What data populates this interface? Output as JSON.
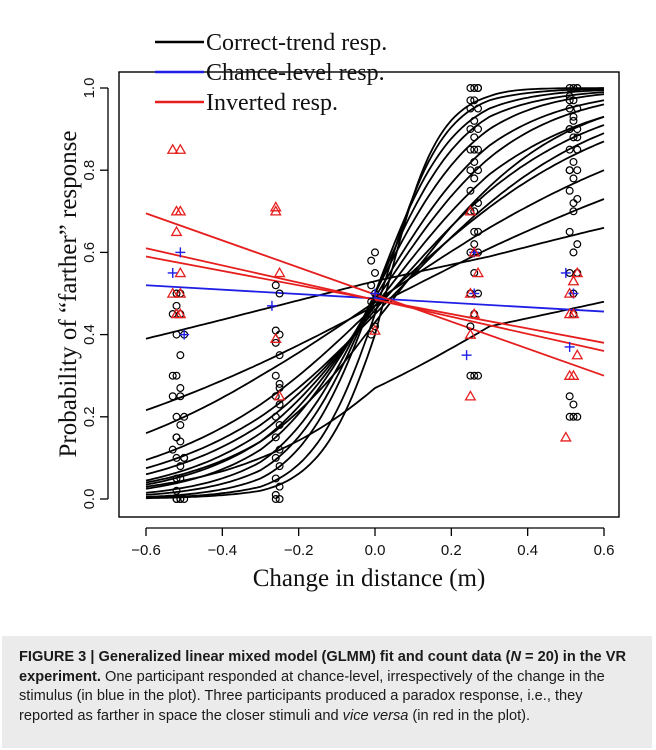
{
  "caption": {
    "label": "FIGURE 3 |",
    "title": "Generalized linear mixed model (GLMM) fit and count data (",
    "n_symbol": "N",
    "n_value": " = 20) in the VR experiment.",
    "text_1": "One participant responded at chance-level, irrespectively of the change in the stimulus (in blue in the plot). Three participants produced a paradox response, i.e., they reported as farther in space the closer stimuli and ",
    "text_italic": "vice versa",
    "text_2": " (in red in the plot)."
  },
  "colors": {
    "correct": "#000000",
    "chance": "#1f1fe6",
    "inverted": "#e61e1e"
  },
  "chart_data": {
    "type": "scatter",
    "xlabel": "Change in distance (m)",
    "ylabel": "Probability of “farther” response",
    "xlim": [
      -0.6,
      0.6
    ],
    "ylim": [
      0.0,
      1.0
    ],
    "xticks": [
      -0.6,
      -0.4,
      -0.2,
      0.0,
      0.2,
      0.4,
      0.6
    ],
    "xtick_labels": [
      "−0.6",
      "−0.4",
      "−0.2",
      "0.0",
      "0.2",
      "0.4",
      "0.6"
    ],
    "yticks": [
      0.0,
      0.2,
      0.4,
      0.6,
      0.8,
      1.0
    ],
    "ytick_labels": [
      "0.0",
      "0.2",
      "0.4",
      "0.6",
      "0.8",
      "1.0"
    ],
    "grid": false,
    "legend": {
      "placement": "top-left",
      "entries": [
        {
          "label": "Correct-trend resp.",
          "color": "#000000"
        },
        {
          "label": "Chance-level resp.",
          "color": "#1f1fe6"
        },
        {
          "label": "Inverted resp.",
          "color": "#e61e1e"
        }
      ]
    },
    "fit_curves": [
      {
        "group": "correct",
        "x": [
          -0.6,
          -0.3,
          0.0,
          0.3,
          0.6
        ],
        "y": [
          0.39,
          0.46,
          0.53,
          0.59,
          0.66
        ]
      },
      {
        "group": "correct",
        "x": [
          -0.6,
          -0.3,
          0.0,
          0.3,
          0.6
        ],
        "y": [
          0.216,
          0.33,
          0.47,
          0.61,
          0.73
        ]
      },
      {
        "group": "correct",
        "x": [
          -0.6,
          -0.3,
          0.0,
          0.3,
          0.6
        ],
        "y": [
          0.03,
          0.1,
          0.27,
          0.42,
          0.48
        ]
      },
      {
        "group": "correct",
        "x": [
          -0.6,
          -0.3,
          0.0,
          0.3,
          0.6
        ],
        "y": [
          0.16,
          0.3,
          0.48,
          0.66,
          0.8
        ]
      },
      {
        "group": "correct",
        "x": [
          -0.6,
          -0.3,
          0.0,
          0.3,
          0.6
        ],
        "y": [
          0.095,
          0.23,
          0.47,
          0.71,
          0.87
        ]
      },
      {
        "group": "correct",
        "x": [
          -0.6,
          -0.3,
          0.0,
          0.3,
          0.6
        ],
        "y": [
          0.075,
          0.2,
          0.45,
          0.72,
          0.89
        ]
      },
      {
        "group": "correct",
        "x": [
          -0.6,
          -0.3,
          0.0,
          0.3,
          0.6
        ],
        "y": [
          0.06,
          0.18,
          0.46,
          0.75,
          0.91
        ]
      },
      {
        "group": "correct",
        "x": [
          -0.6,
          -0.3,
          0.0,
          0.3,
          0.6
        ],
        "y": [
          0.045,
          0.16,
          0.47,
          0.79,
          0.93
        ]
      },
      {
        "group": "correct",
        "x": [
          -0.6,
          -0.3,
          0.0,
          0.3,
          0.6
        ],
        "y": [
          0.035,
          0.14,
          0.48,
          0.83,
          0.96
        ]
      },
      {
        "group": "correct",
        "x": [
          -0.6,
          -0.3,
          0.0,
          0.3,
          0.6
        ],
        "y": [
          0.025,
          0.12,
          0.49,
          0.86,
          0.97
        ]
      },
      {
        "group": "correct",
        "x": [
          -0.6,
          -0.3,
          0.0,
          0.3,
          0.6
        ],
        "y": [
          0.015,
          0.09,
          0.5,
          0.9,
          0.985
        ]
      },
      {
        "group": "correct",
        "x": [
          -0.6,
          -0.3,
          0.0,
          0.3,
          0.6
        ],
        "y": [
          0.01,
          0.07,
          0.5,
          0.93,
          0.99
        ]
      },
      {
        "group": "correct",
        "x": [
          -0.6,
          -0.3,
          0.0,
          0.3,
          0.6
        ],
        "y": [
          0.005,
          0.05,
          0.5,
          0.95,
          0.995
        ]
      },
      {
        "group": "correct",
        "x": [
          -0.6,
          -0.3,
          0.0,
          0.3,
          0.6
        ],
        "y": [
          0.003,
          0.03,
          0.45,
          0.97,
          0.998
        ]
      },
      {
        "group": "correct",
        "x": [
          -0.6,
          -0.3,
          0.0,
          0.3,
          0.6
        ],
        "y": [
          0.002,
          0.02,
          0.4,
          0.98,
          1.0
        ]
      },
      {
        "group": "correct",
        "x": [
          -0.6,
          -0.3,
          0.0,
          0.3,
          0.6
        ],
        "y": [
          0.04,
          0.14,
          0.43,
          0.76,
          0.93
        ]
      },
      {
        "group": "chance",
        "x": [
          -0.6,
          0.6
        ],
        "y": [
          0.52,
          0.456
        ]
      },
      {
        "group": "inverted",
        "x": [
          -0.6,
          0.6
        ],
        "y": [
          0.695,
          0.3
        ]
      },
      {
        "group": "inverted",
        "x": [
          -0.6,
          0.6
        ],
        "y": [
          0.61,
          0.36
        ]
      },
      {
        "group": "inverted",
        "x": [
          -0.6,
          0.6
        ],
        "y": [
          0.59,
          0.38
        ]
      }
    ],
    "points": [
      {
        "group": "correct",
        "x": [
          -0.52,
          -0.51,
          -0.52,
          -0.51,
          -0.5,
          -0.52,
          -0.51,
          -0.52,
          -0.51,
          -0.5,
          -0.52,
          -0.53,
          -0.51,
          -0.52,
          -0.51,
          -0.5,
          -0.52,
          -0.53,
          -0.51,
          -0.52,
          -0.51,
          -0.52,
          -0.5,
          -0.51,
          -0.53,
          -0.52,
          -0.51,
          -0.52,
          -0.53,
          -0.51,
          -0.52,
          -0.5
        ],
        "y": [
          0.0,
          0.0,
          0.0,
          0.0,
          0.0,
          0.02,
          0.05,
          0.05,
          0.08,
          0.1,
          0.1,
          0.12,
          0.14,
          0.15,
          0.18,
          0.2,
          0.2,
          0.25,
          0.27,
          0.3,
          0.35,
          0.4,
          0.4,
          0.45,
          0.45,
          0.47,
          0.5,
          0.5,
          0.3,
          0.25,
          0.15,
          0.1
        ]
      },
      {
        "group": "correct",
        "x": [
          -0.26,
          -0.25,
          -0.26,
          -0.25,
          -0.26,
          -0.25,
          -0.26,
          -0.25,
          -0.26,
          -0.25,
          -0.26,
          -0.25,
          -0.26,
          -0.25,
          -0.26,
          -0.25,
          -0.26,
          -0.25,
          -0.26,
          -0.25,
          -0.26,
          -0.25
        ],
        "y": [
          0.0,
          0.0,
          0.01,
          0.03,
          0.05,
          0.08,
          0.1,
          0.12,
          0.15,
          0.18,
          0.2,
          0.23,
          0.25,
          0.27,
          0.3,
          0.35,
          0.38,
          0.4,
          0.41,
          0.5,
          0.52,
          0.28
        ]
      },
      {
        "group": "correct",
        "x": [
          -0.01,
          0.0,
          -0.01,
          0.0,
          -0.01,
          0.0,
          -0.01,
          0.0,
          -0.01,
          0.0
        ],
        "y": [
          0.4,
          0.42,
          0.45,
          0.47,
          0.48,
          0.5,
          0.52,
          0.55,
          0.58,
          0.6
        ]
      },
      {
        "group": "correct",
        "x": [
          0.25,
          0.26,
          0.27,
          0.25,
          0.26,
          0.27,
          0.25,
          0.26,
          0.27,
          0.25,
          0.26,
          0.27,
          0.25,
          0.26,
          0.27,
          0.25,
          0.26,
          0.27,
          0.25,
          0.26,
          0.27,
          0.25,
          0.26,
          0.27,
          0.25,
          0.26,
          0.27,
          0.25,
          0.26,
          0.27,
          0.25,
          0.26,
          0.27,
          0.25,
          0.26,
          0.26
        ],
        "y": [
          0.3,
          0.3,
          0.3,
          0.42,
          0.45,
          0.5,
          0.5,
          0.55,
          0.6,
          0.6,
          0.65,
          0.65,
          0.7,
          0.7,
          0.72,
          0.75,
          0.78,
          0.8,
          0.8,
          0.82,
          0.85,
          0.85,
          0.88,
          0.9,
          0.9,
          0.92,
          0.95,
          0.95,
          0.97,
          1.0,
          1.0,
          1.0,
          1.0,
          0.97,
          0.85,
          0.62
        ]
      },
      {
        "group": "correct",
        "x": [
          0.51,
          0.52,
          0.53,
          0.51,
          0.52,
          0.53,
          0.51,
          0.52,
          0.53,
          0.51,
          0.52,
          0.53,
          0.51,
          0.52,
          0.53,
          0.51,
          0.52,
          0.53,
          0.51,
          0.52,
          0.53,
          0.51,
          0.52,
          0.53,
          0.51,
          0.52,
          0.53,
          0.51,
          0.52,
          0.53,
          0.51,
          0.52,
          0.53,
          0.51,
          0.52,
          0.53,
          0.51,
          0.52,
          0.52,
          0.51
        ],
        "y": [
          0.2,
          0.2,
          0.2,
          0.25,
          0.45,
          0.55,
          0.55,
          0.6,
          0.62,
          0.65,
          0.7,
          0.73,
          0.75,
          0.78,
          0.8,
          0.8,
          0.82,
          0.85,
          0.85,
          0.88,
          0.9,
          0.9,
          0.92,
          0.95,
          0.95,
          0.97,
          1.0,
          1.0,
          1.0,
          1.0,
          0.97,
          0.93,
          0.85,
          0.8,
          0.72,
          0.88,
          0.9,
          0.5,
          0.23,
          0.98
        ]
      },
      {
        "group": "chance",
        "x": [
          -0.53,
          -0.51,
          -0.5,
          -0.27,
          0.0,
          0.24,
          0.26,
          0.26,
          0.5,
          0.51,
          0.52
        ],
        "y": [
          0.55,
          0.6,
          0.4,
          0.47,
          0.5,
          0.35,
          0.5,
          0.6,
          0.55,
          0.37,
          0.5
        ]
      },
      {
        "group": "inverted",
        "x": [
          -0.53,
          -0.51,
          -0.52,
          -0.51,
          -0.52,
          -0.51,
          -0.53,
          -0.51,
          -0.52,
          -0.51,
          -0.26,
          -0.26,
          -0.25,
          -0.26,
          -0.25,
          0.0,
          0.25,
          0.26,
          0.27,
          0.25,
          0.26,
          0.25,
          0.25,
          0.5,
          0.51,
          0.52,
          0.53,
          0.52,
          0.51,
          0.52,
          0.53,
          0.51
        ],
        "y": [
          0.85,
          0.85,
          0.7,
          0.7,
          0.65,
          0.55,
          0.5,
          0.5,
          0.45,
          0.45,
          0.71,
          0.7,
          0.55,
          0.39,
          0.25,
          0.41,
          0.7,
          0.6,
          0.55,
          0.5,
          0.45,
          0.4,
          0.25,
          0.15,
          0.3,
          0.3,
          0.35,
          0.45,
          0.5,
          0.53,
          0.55,
          0.45
        ]
      }
    ]
  }
}
